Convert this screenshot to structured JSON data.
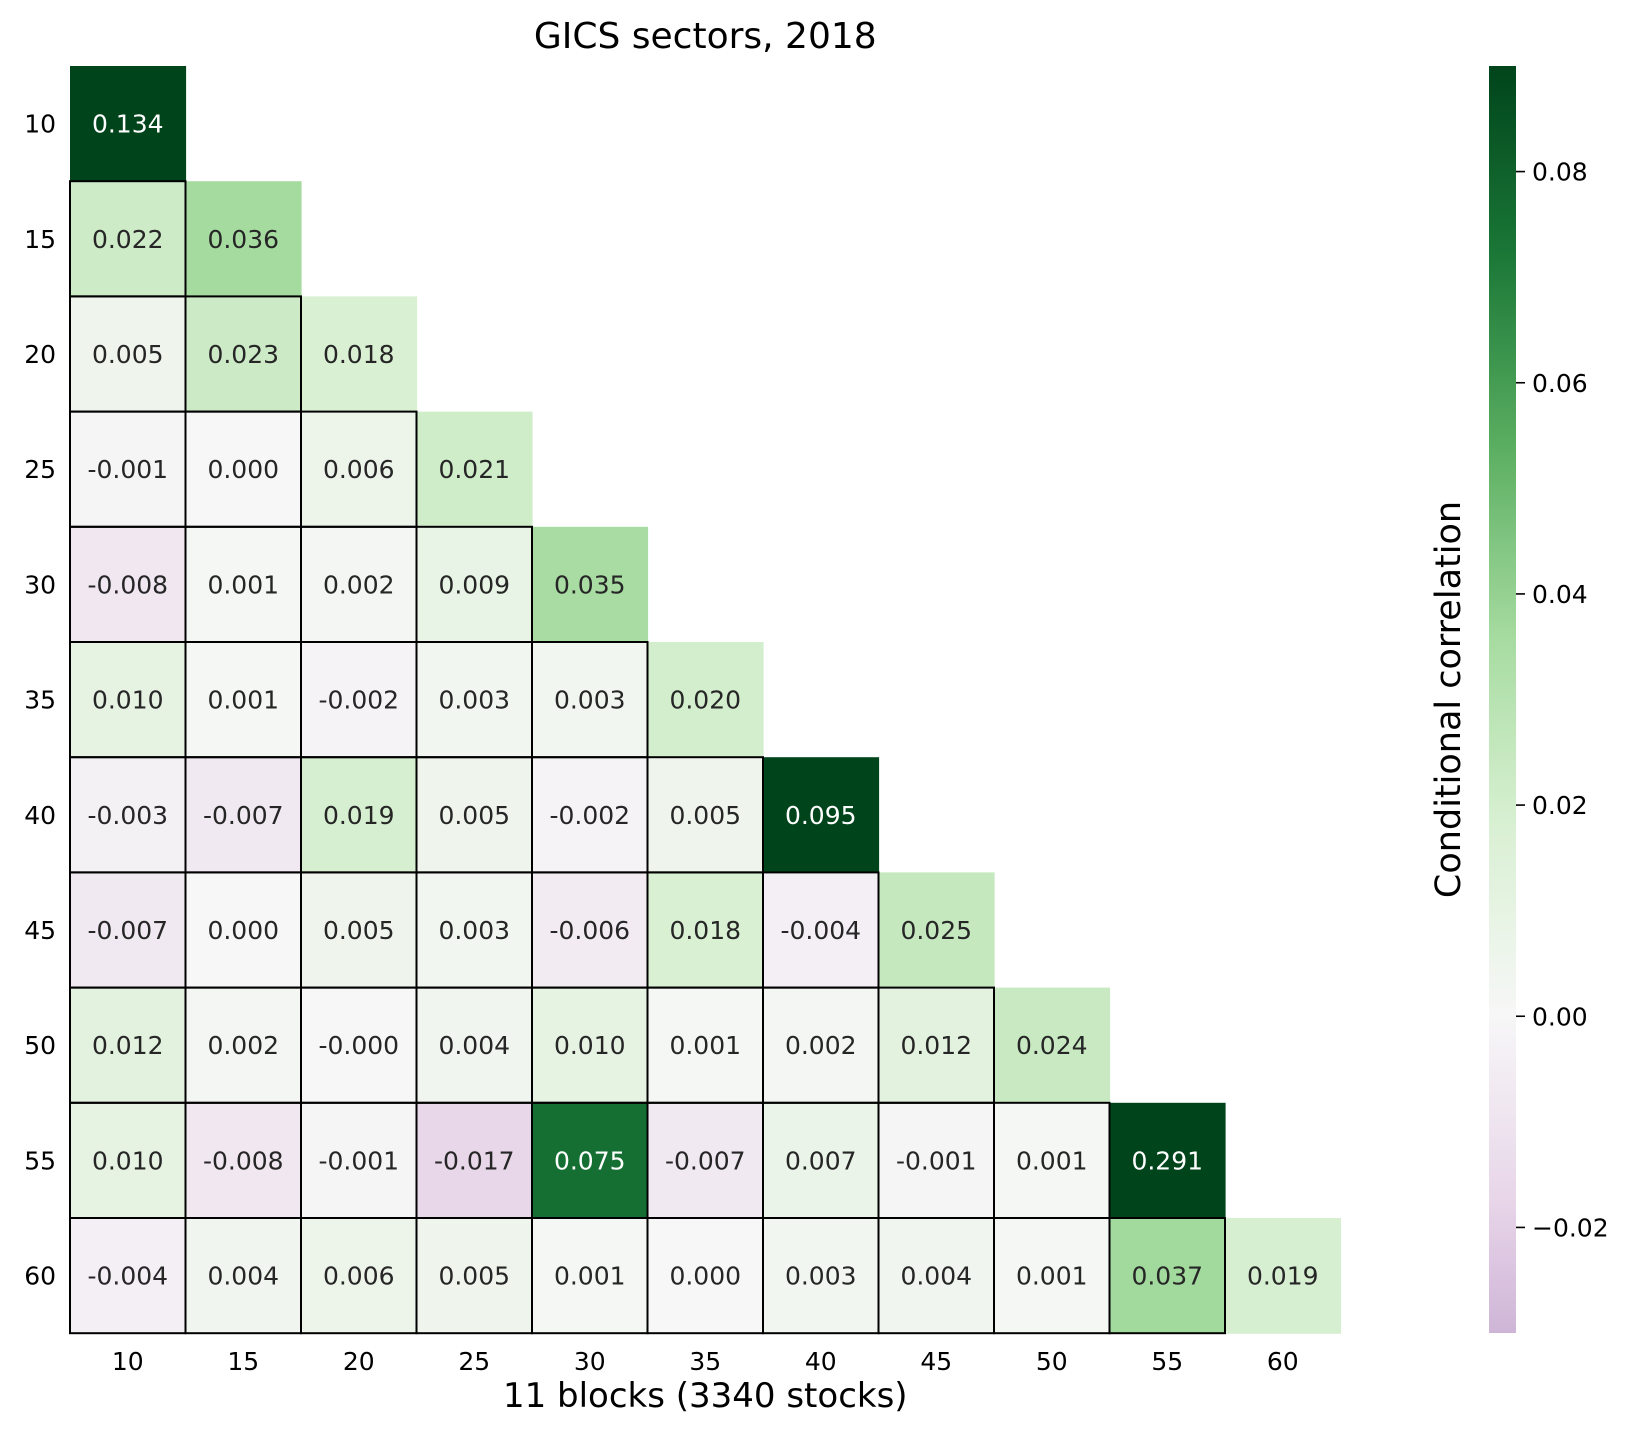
{
  "chart_data": {
    "type": "heatmap",
    "title": "GICS sectors, 2018",
    "xlabel": "11 blocks (3340 stocks)",
    "ylabel": "",
    "row_labels": [
      "10",
      "15",
      "20",
      "25",
      "30",
      "35",
      "40",
      "45",
      "50",
      "55",
      "60"
    ],
    "col_labels": [
      "10",
      "15",
      "20",
      "25",
      "30",
      "35",
      "40",
      "45",
      "50",
      "55",
      "60"
    ],
    "matrix": [
      [
        0.134
      ],
      [
        0.022,
        0.036
      ],
      [
        0.005,
        0.023,
        0.018
      ],
      [
        -0.001,
        0.0,
        0.006,
        0.021
      ],
      [
        -0.008,
        0.001,
        0.002,
        0.009,
        0.035
      ],
      [
        0.01,
        0.001,
        -0.002,
        0.003,
        0.003,
        0.02
      ],
      [
        -0.003,
        -0.007,
        0.019,
        0.005,
        -0.002,
        0.005,
        0.095
      ],
      [
        -0.007,
        0.0,
        0.005,
        0.003,
        -0.006,
        0.018,
        -0.004,
        0.025
      ],
      [
        0.012,
        0.002,
        -0.0,
        0.004,
        0.01,
        0.001,
        0.002,
        0.012,
        0.024
      ],
      [
        0.01,
        -0.008,
        -0.001,
        -0.017,
        0.075,
        -0.007,
        0.007,
        -0.001,
        0.001,
        0.291
      ],
      [
        -0.004,
        0.004,
        0.006,
        0.005,
        0.001,
        0.0,
        0.003,
        0.004,
        0.001,
        0.037,
        0.019
      ]
    ],
    "cell_text": [
      [
        "0.134"
      ],
      [
        "0.022",
        "0.036"
      ],
      [
        "0.005",
        "0.023",
        "0.018"
      ],
      [
        "-0.001",
        "0.000",
        "0.006",
        "0.021"
      ],
      [
        "-0.008",
        "0.001",
        "0.002",
        "0.009",
        "0.035"
      ],
      [
        "0.010",
        "0.001",
        "-0.002",
        "0.003",
        "0.003",
        "0.020"
      ],
      [
        "-0.003",
        "-0.007",
        "0.019",
        "0.005",
        "-0.002",
        "0.005",
        "0.095"
      ],
      [
        "-0.007",
        "0.000",
        "0.005",
        "0.003",
        "-0.006",
        "0.018",
        "-0.004",
        "0.025"
      ],
      [
        "0.012",
        "0.002",
        "-0.000",
        "0.004",
        "0.010",
        "0.001",
        "0.002",
        "0.012",
        "0.024"
      ],
      [
        "0.010",
        "-0.008",
        "-0.001",
        "-0.017",
        "0.075",
        "-0.007",
        "0.007",
        "-0.001",
        "0.001",
        "0.291"
      ],
      [
        "-0.004",
        "0.004",
        "0.006",
        "0.005",
        "0.001",
        "0.000",
        "0.003",
        "0.004",
        "0.001",
        "0.037",
        "0.019"
      ]
    ],
    "colorbar": {
      "label": "Conditional correlation",
      "vmin": -0.03,
      "vmax": 0.09,
      "ticks": [
        -0.02,
        0.0,
        0.02,
        0.04,
        0.06,
        0.08
      ],
      "tick_labels": [
        "−0.02",
        "0.00",
        "0.02",
        "0.04",
        "0.06",
        "0.08"
      ],
      "colormap": "PRGn",
      "center": 0.0
    },
    "block_outlines": "black borders on off-diagonal cells"
  }
}
